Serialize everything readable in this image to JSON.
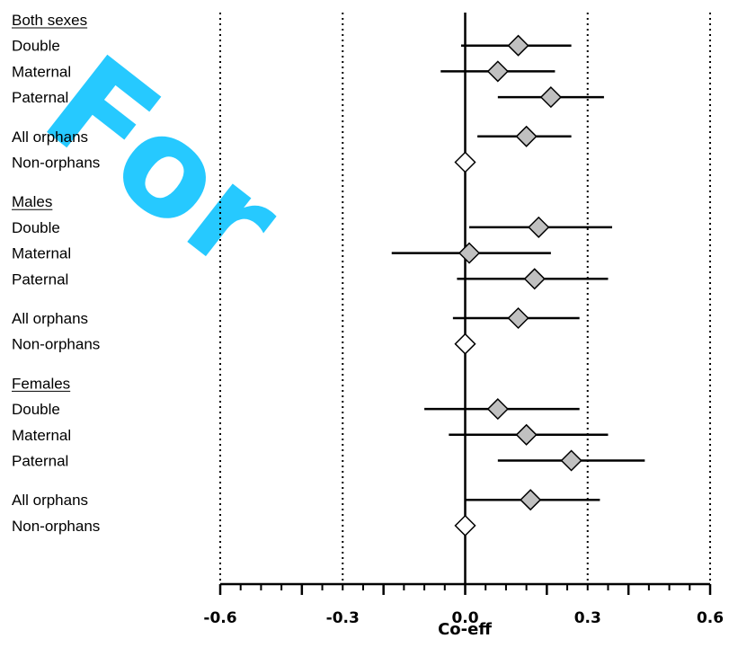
{
  "chart_data": {
    "type": "scatter",
    "subtype": "forest-plot",
    "title": "",
    "xlabel": "Co-eff",
    "ylabel": "",
    "xlim": [
      -0.6,
      0.6
    ],
    "x_ticks": [
      -0.6,
      -0.3,
      0.0,
      0.3,
      0.6
    ],
    "x_tick_labels": [
      "-0.6",
      "-0.3",
      "0.0",
      "0.3",
      "0.6"
    ],
    "reference_lines": [
      -0.6,
      -0.3,
      0.3,
      0.6
    ],
    "zero_line": 0.0,
    "marker_colors": {
      "estimate": "#c0c0c0",
      "reference": "#ffffff",
      "stroke": "#000000"
    },
    "watermark_text": "For",
    "watermark_color": "#00bfff",
    "rows": [
      {
        "label": "Both sexes",
        "header": true
      },
      {
        "label": "Double",
        "estimate": 0.13,
        "lower": -0.01,
        "upper": 0.26
      },
      {
        "label": "Maternal",
        "estimate": 0.08,
        "lower": -0.06,
        "upper": 0.22
      },
      {
        "label": "Paternal",
        "estimate": 0.21,
        "lower": 0.08,
        "upper": 0.34
      },
      {
        "label": "All orphans",
        "estimate": 0.15,
        "lower": 0.03,
        "upper": 0.26,
        "gap_before": true
      },
      {
        "label": "Non-orphans",
        "estimate": 0.0,
        "reference": true
      },
      {
        "label": "Males",
        "header": true,
        "gap_before": true
      },
      {
        "label": "Double",
        "estimate": 0.18,
        "lower": 0.01,
        "upper": 0.36
      },
      {
        "label": "Maternal",
        "estimate": 0.01,
        "lower": -0.18,
        "upper": 0.21
      },
      {
        "label": "Paternal",
        "estimate": 0.17,
        "lower": -0.02,
        "upper": 0.35
      },
      {
        "label": "All orphans",
        "estimate": 0.13,
        "lower": -0.03,
        "upper": 0.28,
        "gap_before": true
      },
      {
        "label": "Non-orphans",
        "estimate": 0.0,
        "reference": true
      },
      {
        "label": "Females",
        "header": true,
        "gap_before": true
      },
      {
        "label": "Double",
        "estimate": 0.08,
        "lower": -0.1,
        "upper": 0.28
      },
      {
        "label": "Maternal",
        "estimate": 0.15,
        "lower": -0.04,
        "upper": 0.35
      },
      {
        "label": "Paternal",
        "estimate": 0.26,
        "lower": 0.08,
        "upper": 0.44
      },
      {
        "label": "All orphans",
        "estimate": 0.16,
        "lower": 0.0,
        "upper": 0.33,
        "gap_before": true
      },
      {
        "label": "Non-orphans",
        "estimate": 0.0,
        "reference": true
      }
    ]
  }
}
